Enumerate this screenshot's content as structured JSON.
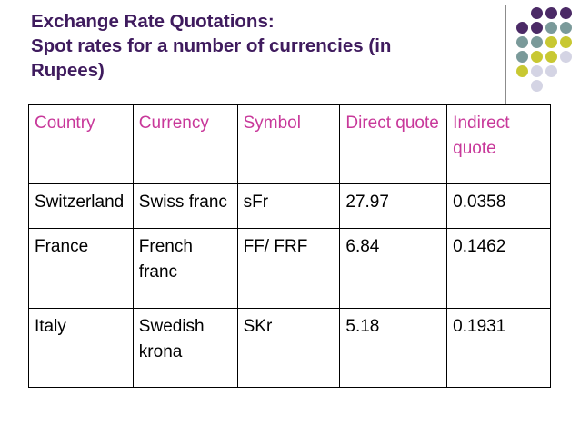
{
  "slide": {
    "title_lines": [
      "Exchange Rate Quotations:",
      "Spot rates for a number of currencies (in",
      "Rupees)"
    ]
  },
  "decoration": {
    "dot_colors": [
      "#4b2a66",
      "#7a9a9a",
      "#c8c832",
      "#d4d4e4"
    ]
  },
  "table": {
    "headers": [
      "Country",
      "Currency",
      "Symbol",
      "Direct quote",
      "Indirect quote"
    ],
    "rows": [
      [
        "Switzerland",
        "Swiss franc",
        "sFr",
        "27.97",
        "0.0358"
      ],
      [
        "France",
        "French franc",
        "FF/ FRF",
        "6.84",
        "0.1462"
      ],
      [
        "Italy",
        "Swedish krona",
        "SKr",
        "5.18",
        "0.1931"
      ]
    ]
  }
}
